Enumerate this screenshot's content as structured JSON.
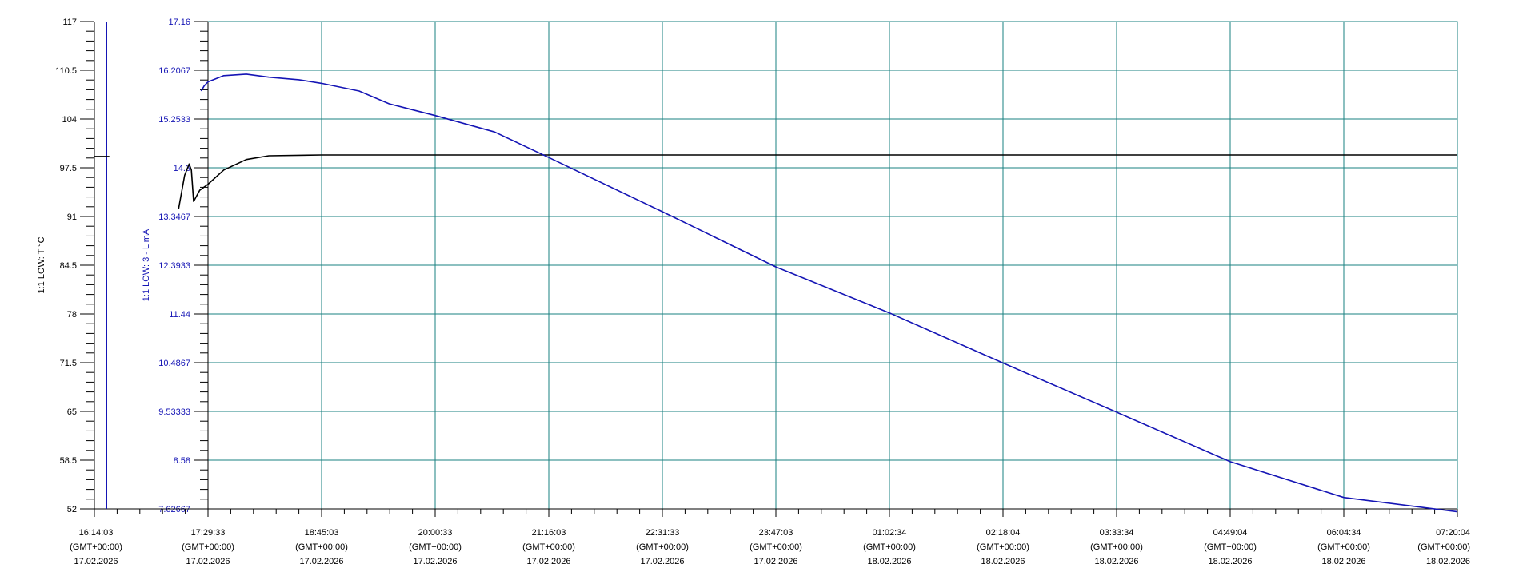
{
  "chart_data": {
    "type": "line",
    "left_axis": {
      "label": "1:1 LOW: T °C",
      "ticks": [
        "117",
        "110.5",
        "104",
        "97.5",
        "91",
        "84.5",
        "78",
        "71.5",
        "65",
        "58.5",
        "52"
      ],
      "ylim": [
        52,
        117
      ],
      "color": "#000000"
    },
    "right_axis": {
      "label": "1:1 LOW: 3 - L mA",
      "ticks": [
        "17.16",
        "16.2067",
        "15.2533",
        "14.3",
        "13.3467",
        "12.3933",
        "11.44",
        "10.4867",
        "9.53333",
        "8.58",
        "7.62667"
      ],
      "ylim": [
        7.62667,
        17.16
      ],
      "color": "#1515b5"
    },
    "x_ticks": [
      {
        "time": "16:14:03",
        "tz": "(GMT+00:00)",
        "date": "17.02.2026"
      },
      {
        "time": "17:29:33",
        "tz": "(GMT+00:00)",
        "date": "17.02.2026"
      },
      {
        "time": "18:45:03",
        "tz": "(GMT+00:00)",
        "date": "17.02.2026"
      },
      {
        "time": "20:00:33",
        "tz": "(GMT+00:00)",
        "date": "17.02.2026"
      },
      {
        "time": "21:16:03",
        "tz": "(GMT+00:00)",
        "date": "17.02.2026"
      },
      {
        "time": "22:31:33",
        "tz": "(GMT+00:00)",
        "date": "17.02.2026"
      },
      {
        "time": "23:47:03",
        "tz": "(GMT+00:00)",
        "date": "17.02.2026"
      },
      {
        "time": "01:02:34",
        "tz": "(GMT+00:00)",
        "date": "18.02.2026"
      },
      {
        "time": "02:18:04",
        "tz": "(GMT+00:00)",
        "date": "18.02.2026"
      },
      {
        "time": "03:33:34",
        "tz": "(GMT+00:00)",
        "date": "18.02.2026"
      },
      {
        "time": "04:49:04",
        "tz": "(GMT+00:00)",
        "date": "18.02.2026"
      },
      {
        "time": "06:04:34",
        "tz": "(GMT+00:00)",
        "date": "18.02.2026"
      },
      {
        "time": "07:20:04",
        "tz": "(GMT+00:00)",
        "date": "18.02.2026"
      }
    ],
    "grid": true,
    "grid_color": "#1a8080",
    "series": [
      {
        "axis": "left",
        "color": "#000000",
        "unit": "°C",
        "x": [
          "16:14:03",
          "16:24:00",
          "17:00:00",
          "17:10:00",
          "17:14:00",
          "17:17:00",
          "17:18:30",
          "17:20:00",
          "17:24:00",
          "17:29:33",
          "17:40:00",
          "17:55:00",
          "18:10:00",
          "18:45:03",
          "20:00:33",
          "21:16:03",
          "22:31:33",
          "23:47:03",
          "01:02:34",
          "02:18:04",
          "03:33:34",
          "04:49:04",
          "06:04:34",
          "07:20:04"
        ],
        "values": [
          99.0,
          99.0,
          null,
          92.0,
          96.5,
          98.0,
          97.2,
          93.0,
          94.5,
          95.3,
          97.2,
          98.6,
          99.1,
          99.2,
          99.2,
          99.2,
          99.2,
          99.2,
          99.2,
          99.2,
          99.2,
          99.2,
          99.2,
          99.2
        ]
      },
      {
        "axis": "right",
        "color": "#1515b5",
        "unit": "mA",
        "x": [
          "17:25:00",
          "17:27:00",
          "17:29:33",
          "17:40:00",
          "17:55:00",
          "18:10:00",
          "18:30:00",
          "18:45:03",
          "19:10:00",
          "19:30:00",
          "20:00:33",
          "20:40:00",
          "21:16:03",
          "22:31:33",
          "23:47:03",
          "01:02:34",
          "02:18:04",
          "03:33:34",
          "04:49:04",
          "06:04:34",
          "07:20:04"
        ],
        "values": [
          15.8,
          15.9,
          15.98,
          16.1,
          16.13,
          16.07,
          16.02,
          15.95,
          15.8,
          15.55,
          15.32,
          15.0,
          14.5,
          13.44,
          12.36,
          11.46,
          10.48,
          9.52,
          8.55,
          7.85,
          7.57
        ]
      }
    ]
  }
}
